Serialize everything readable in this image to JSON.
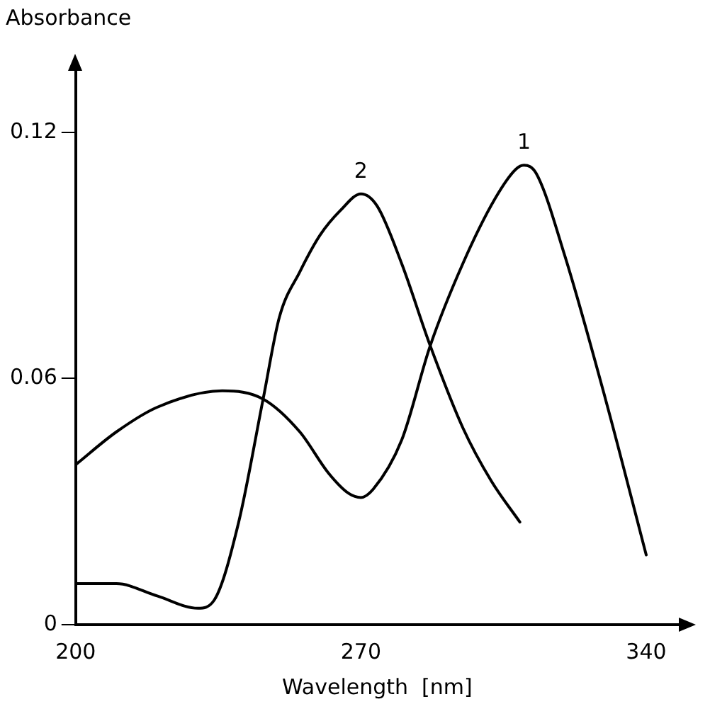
{
  "chart_data": {
    "type": "line",
    "xlabel": "Wavelength  [nm]",
    "ylabel": "Absorbance",
    "xlim": [
      200,
      348
    ],
    "ylim": [
      0,
      0.135
    ],
    "xticks": [
      200,
      270,
      340
    ],
    "yticks": [
      0,
      0.06,
      0.12
    ],
    "grid": false,
    "legend": false,
    "marker": "none",
    "line_style": "solid",
    "annotations": [
      {
        "text": "1",
        "x": 310,
        "y": 0.112
      },
      {
        "text": "2",
        "x": 270,
        "y": 0.105
      }
    ],
    "series": [
      {
        "color": "#000000",
        "x": [
          200,
          210,
          220,
          236,
          246,
          255,
          262,
          267,
          270,
          273,
          280,
          287,
          295,
          303,
          308,
          310,
          313,
          320,
          330,
          340
        ],
        "values": [
          0.039,
          0.047,
          0.053,
          0.057,
          0.055,
          0.047,
          0.037,
          0.032,
          0.031,
          0.033,
          0.045,
          0.068,
          0.088,
          0.104,
          0.111,
          0.112,
          0.11,
          0.09,
          0.055,
          0.017
        ]
      },
      {
        "color": "#000000",
        "x": [
          200,
          210,
          220,
          230,
          234,
          240,
          246,
          250,
          255,
          260,
          265,
          270,
          274,
          280,
          287,
          295,
          302,
          309
        ],
        "values": [
          0.01,
          0.01,
          0.007,
          0.004,
          0.006,
          0.025,
          0.055,
          0.075,
          0.086,
          0.095,
          0.101,
          0.105,
          0.102,
          0.088,
          0.068,
          0.048,
          0.035,
          0.025
        ]
      }
    ]
  }
}
